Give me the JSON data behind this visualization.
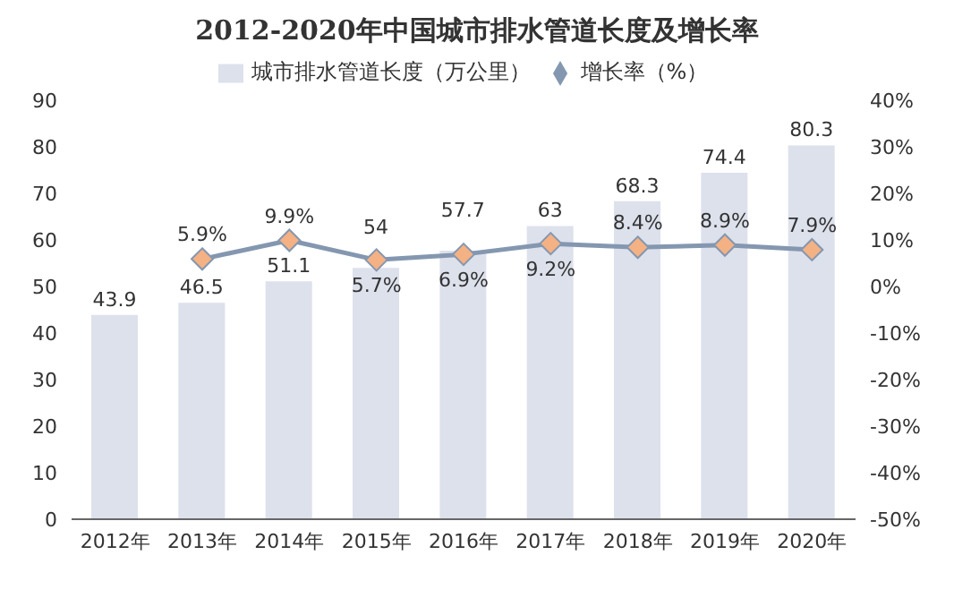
{
  "chart_data": {
    "type": "bar",
    "title": "2012-2020年中国城市排水管道长度及增长率",
    "categories": [
      "2012年",
      "2013年",
      "2014年",
      "2015年",
      "2016年",
      "2017年",
      "2018年",
      "2019年",
      "2020年"
    ],
    "series": [
      {
        "name": "城市排水管道长度（万公里）",
        "color": "#dde1ec",
        "values": [
          43.9,
          46.5,
          51.1,
          54,
          57.7,
          63,
          68.3,
          74.4,
          80.3
        ],
        "data_labels": true
      },
      {
        "name": "增长率（%）",
        "type": "line",
        "axis": "y2",
        "color": "#8497b0",
        "colors": [
          null,
          "#f4b183",
          "#f4b183",
          "#f4b183",
          "#f4b183",
          "#f4b183",
          "#f4b183",
          "#f4b183",
          "#f4b183"
        ],
        "values": [
          null,
          5.9,
          9.9,
          5.7,
          6.9,
          9.2,
          8.4,
          8.9,
          7.9
        ],
        "value_labels": [
          null,
          "5.9%",
          "9.9%",
          "5.7%",
          "6.9%",
          "9.2%",
          "8.4%",
          "8.9%",
          "7.9%"
        ]
      }
    ],
    "ylim": [
      0,
      90
    ],
    "yticks": [
      0,
      10,
      20,
      30,
      40,
      50,
      60,
      70,
      80,
      90
    ],
    "y2lim": [
      -50,
      40
    ],
    "y2ticks": [
      {
        "value": -50,
        "label": "-50%"
      },
      {
        "value": -40,
        "label": "-40%"
      },
      {
        "value": -30,
        "label": "-30%"
      },
      {
        "value": -20,
        "label": "-20%"
      },
      {
        "value": -10,
        "label": "-10%"
      },
      {
        "value": 0,
        "label": "0%"
      },
      {
        "value": 10,
        "label": "10%"
      },
      {
        "value": 20,
        "label": "20%"
      },
      {
        "value": 30,
        "label": "30%"
      },
      {
        "value": 40,
        "label": "40%"
      }
    ],
    "legend": "top",
    "marker": "diamond"
  }
}
